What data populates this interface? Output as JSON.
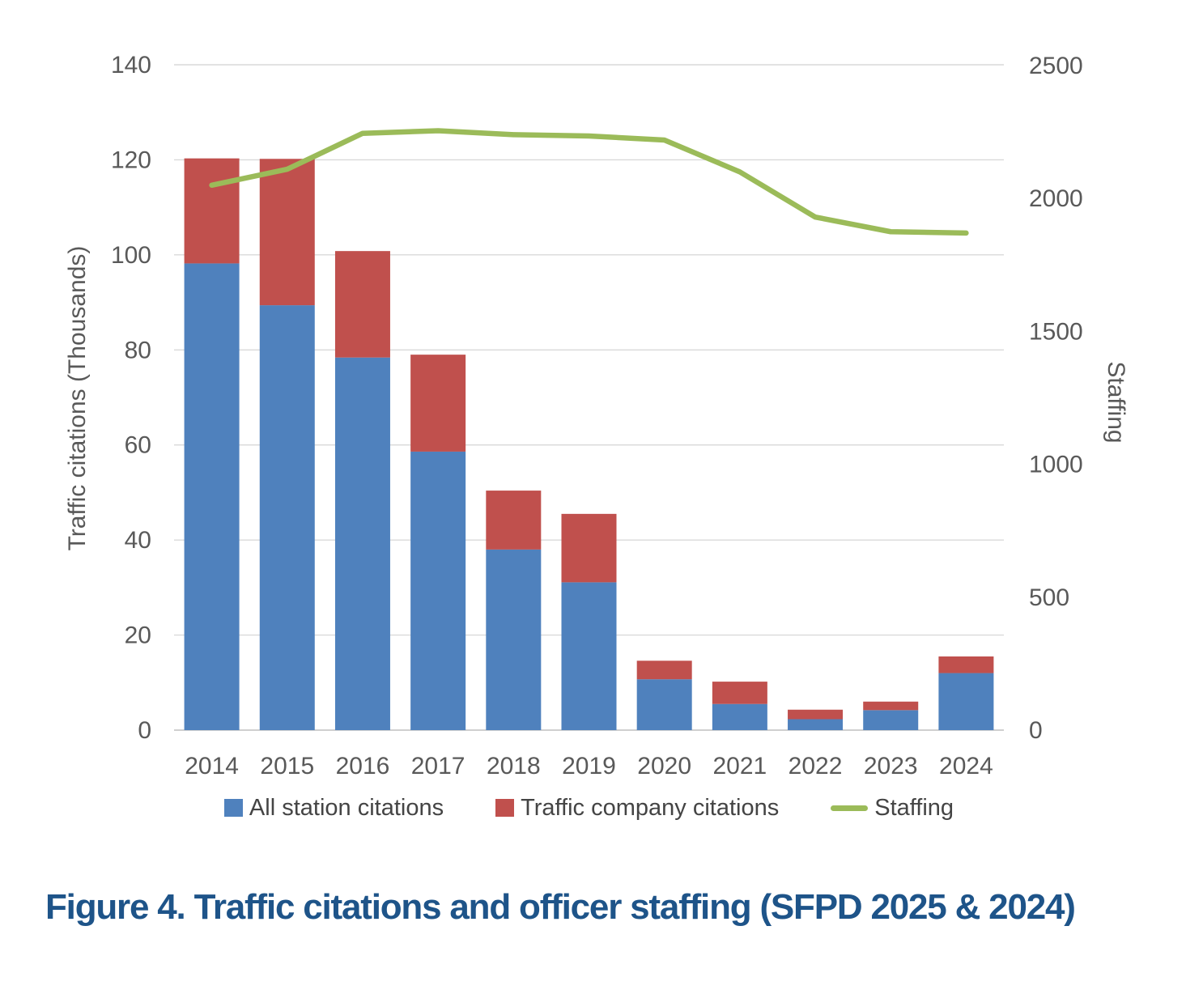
{
  "page": {
    "caption": "Figure 4. Traffic citations and officer staffing (SFPD 2025 & 2024)"
  },
  "chart_data": {
    "type": "combo (stacked bar + line, dual axis)",
    "categories": [
      "2014",
      "2015",
      "2016",
      "2017",
      "2018",
      "2019",
      "2020",
      "2021",
      "2022",
      "2023",
      "2024"
    ],
    "series": [
      {
        "name": "All station citations",
        "type": "bar",
        "stack": "citations",
        "axis": "left",
        "color": "#4F81BD",
        "values": [
          98.2,
          89.4,
          78.4,
          58.6,
          38.0,
          31.1,
          10.7,
          5.5,
          2.3,
          4.2,
          12.0
        ]
      },
      {
        "name": "Traffic company citations",
        "type": "bar",
        "stack": "citations",
        "axis": "left",
        "color": "#C0504D",
        "values": [
          22.1,
          30.8,
          22.4,
          20.4,
          12.4,
          14.4,
          3.9,
          4.7,
          2.0,
          1.8,
          3.5
        ]
      },
      {
        "name": "Staffing",
        "type": "line",
        "axis": "right",
        "color": "#9BBB59",
        "values": [
          2050,
          2110,
          2245,
          2255,
          2240,
          2235,
          2220,
          2100,
          1930,
          1875,
          1870
        ]
      }
    ],
    "left_axis": {
      "label": "Traffic citations (Thousands)",
      "min": 0,
      "max": 140,
      "ticks": [
        0,
        20,
        40,
        60,
        80,
        100,
        120,
        140
      ]
    },
    "right_axis": {
      "label": "Staffing",
      "min": 0,
      "max": 2500,
      "ticks": [
        0,
        500,
        1000,
        1500,
        2000,
        2500
      ]
    },
    "grid": true,
    "legend_position": "bottom"
  },
  "style": {
    "grid_color": "#D9D9D9",
    "axis_line_color": "#BFBFBF",
    "tick_text_color": "#595959",
    "legend_text_color": "#444444",
    "caption_color": "#1E5489",
    "background": "#FFFFFF"
  }
}
